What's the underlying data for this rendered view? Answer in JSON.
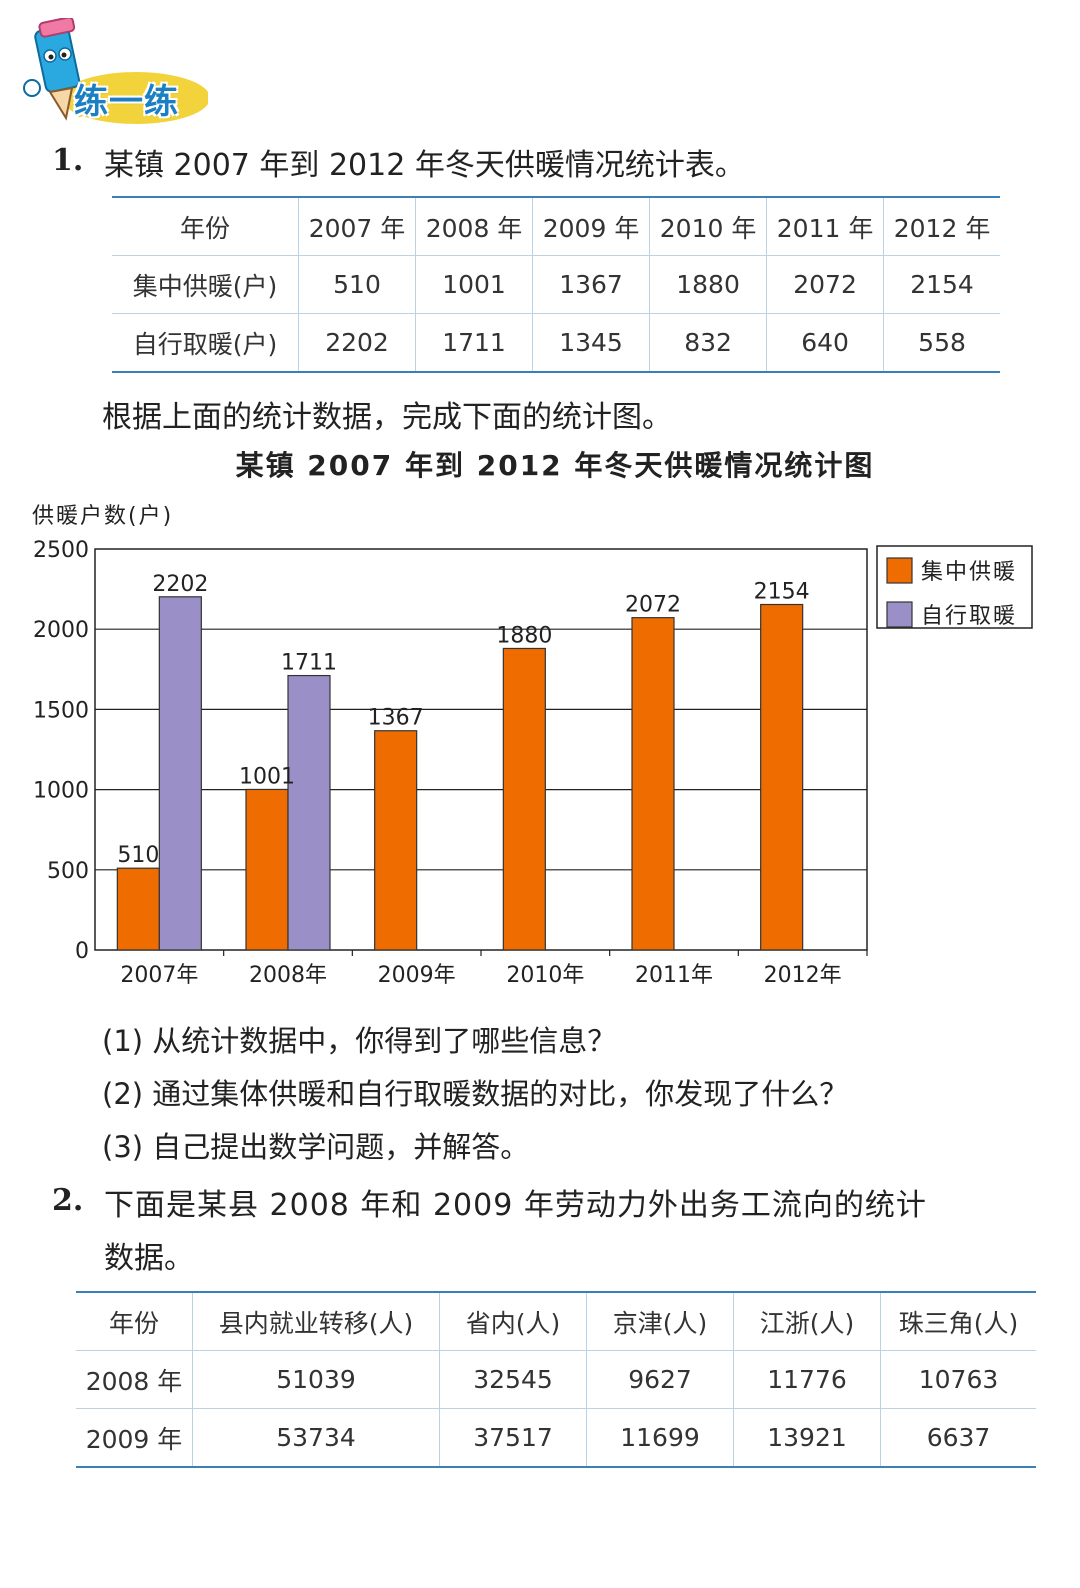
{
  "header": {
    "badge_text": "练一练"
  },
  "q1": {
    "number": "1.",
    "text": "某镇 2007 年到 2012 年冬天供暖情况统计表。",
    "table": {
      "header": [
        "年份",
        "2007 年",
        "2008 年",
        "2009 年",
        "2010 年",
        "2011 年",
        "2012 年"
      ],
      "rows": [
        [
          "集中供暖(户)",
          "510",
          "1001",
          "1367",
          "1880",
          "2072",
          "2154"
        ],
        [
          "自行取暖(户)",
          "2202",
          "1711",
          "1345",
          "832",
          "640",
          "558"
        ]
      ]
    },
    "instruction": "根据上面的统计数据，完成下面的统计图。",
    "sub_questions": [
      "(1) 从统计数据中，你得到了哪些信息？",
      "(2) 通过集体供暖和自行取暖数据的对比，你发现了什么？",
      "(3) 自己提出数学问题，并解答。"
    ]
  },
  "chart_data": {
    "type": "bar",
    "title": "某镇 2007 年到 2012 年冬天供暖情况统计图",
    "ylabel": "供暖户数(户)",
    "xlabel": "",
    "categories": [
      "2007年",
      "2008年",
      "2009年",
      "2010年",
      "2011年",
      "2012年"
    ],
    "yticks": [
      0,
      500,
      1000,
      1500,
      2000,
      2500
    ],
    "ylim": [
      0,
      2500
    ],
    "grid": true,
    "legend_position": "top-right",
    "series": [
      {
        "name": "集中供暖",
        "color": "#ef6c00",
        "values": [
          510,
          1001,
          1367,
          1880,
          2072,
          2154
        ]
      },
      {
        "name": "自行取暖",
        "color": "#9b8fc8",
        "values": [
          2202,
          1711,
          null,
          null,
          null,
          null
        ]
      }
    ]
  },
  "q2": {
    "number": "2.",
    "text_line1": "下面是某县 2008 年和 2009 年劳动力外出务工流向的统计",
    "text_line2": "数据。",
    "table": {
      "header": [
        "年份",
        "县内就业转移(人)",
        "省内(人)",
        "京津(人)",
        "江浙(人)",
        "珠三角(人)"
      ],
      "rows": [
        [
          "2008 年",
          "51039",
          "32545",
          "9627",
          "11776",
          "10763"
        ],
        [
          "2009 年",
          "53734",
          "37517",
          "11699",
          "13921",
          "6637"
        ]
      ]
    }
  }
}
